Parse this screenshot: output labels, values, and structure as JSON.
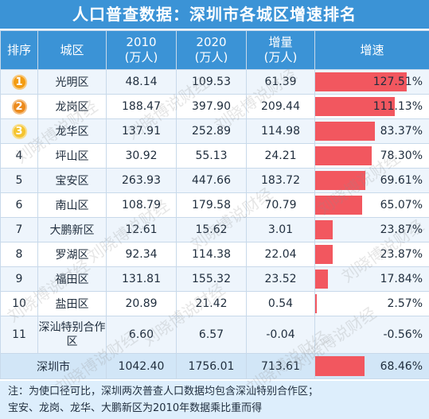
{
  "title": "人口普查数据：深圳市各城区增速排名",
  "headers": {
    "rank": "排序",
    "district": "城区",
    "y2010_line1": "2010",
    "y2010_line2": "(万人)",
    "y2020_line1": "2020",
    "y2020_line2": "(万人)",
    "inc_line1": "增量",
    "inc_line2": "(万人)",
    "rate": "增速"
  },
  "medal_colors": [
    "#f39c12",
    "#ec8a1c",
    "#f4c430"
  ],
  "bar_color": "#f2575f",
  "header_color": "#3b93d6",
  "chart_data": {
    "type": "table",
    "title": "人口普查数据：深圳市各城区增速排名",
    "columns": [
      "排序",
      "城区",
      "2010(万人)",
      "2020(万人)",
      "增量(万人)",
      "增速"
    ],
    "rows": [
      {
        "rank": "1",
        "district": "光明区",
        "p2010": "48.14",
        "p2020": "109.53",
        "increase": "61.39",
        "rate": "127.51%",
        "rate_value": 127.51
      },
      {
        "rank": "2",
        "district": "龙岗区",
        "p2010": "188.47",
        "p2020": "397.90",
        "increase": "209.44",
        "rate": "111.13%",
        "rate_value": 111.13
      },
      {
        "rank": "3",
        "district": "龙华区",
        "p2010": "137.91",
        "p2020": "252.89",
        "increase": "114.98",
        "rate": "83.37%",
        "rate_value": 83.37
      },
      {
        "rank": "4",
        "district": "坪山区",
        "p2010": "30.92",
        "p2020": "55.13",
        "increase": "24.21",
        "rate": "78.30%",
        "rate_value": 78.3
      },
      {
        "rank": "5",
        "district": "宝安区",
        "p2010": "263.93",
        "p2020": "447.66",
        "increase": "183.72",
        "rate": "69.61%",
        "rate_value": 69.61
      },
      {
        "rank": "6",
        "district": "南山区",
        "p2010": "108.79",
        "p2020": "179.58",
        "increase": "70.79",
        "rate": "65.07%",
        "rate_value": 65.07
      },
      {
        "rank": "7",
        "district": "大鹏新区",
        "p2010": "12.61",
        "p2020": "15.62",
        "increase": "3.01",
        "rate": "23.87%",
        "rate_value": 23.87
      },
      {
        "rank": "8",
        "district": "罗湖区",
        "p2010": "92.34",
        "p2020": "114.38",
        "increase": "22.04",
        "rate": "23.87%",
        "rate_value": 23.87
      },
      {
        "rank": "9",
        "district": "福田区",
        "p2010": "131.81",
        "p2020": "155.32",
        "increase": "23.52",
        "rate": "17.84%",
        "rate_value": 17.84
      },
      {
        "rank": "10",
        "district": "盐田区",
        "p2010": "20.89",
        "p2020": "21.42",
        "increase": "0.54",
        "rate": "2.57%",
        "rate_value": 2.57
      },
      {
        "rank": "11",
        "district": "深汕特别合作区",
        "p2010": "6.60",
        "p2020": "6.57",
        "increase": "-0.04",
        "rate": "-0.56%",
        "rate_value": -0.56
      }
    ],
    "total": {
      "district": "深圳市",
      "p2010": "1042.40",
      "p2020": "1756.01",
      "increase": "713.61",
      "rate": "68.46%",
      "rate_value": 68.46
    },
    "bar_max": 135
  },
  "note": {
    "line1": "注：为使口径可比，深圳两次普查人口数据均包含深汕特别合作区；",
    "line2": "宝安、龙岗、龙华、大鹏新区为2010年数据乘比重而得"
  },
  "watermark": "刘晓博说财经"
}
